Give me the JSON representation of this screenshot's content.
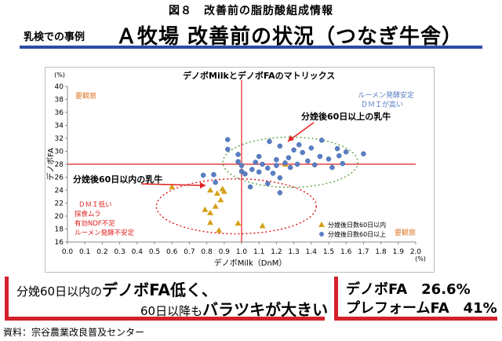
{
  "header": {
    "figure_title": "図８　改善前の脂肪酸組成情報",
    "case_label": "乳検での事例",
    "main_title": "Ａ牧場 改善前の状況（つなぎ牛舎）"
  },
  "chart_data": {
    "type": "scatter",
    "title": "デノボMilkとデノボFAのマトリックス",
    "xlabel": "デノボMilk（DnM）",
    "ylabel": "デノボFA",
    "x_unit": "(%)",
    "y_unit": "(%)",
    "xlim": [
      0.0,
      2.0
    ],
    "ylim": [
      16,
      40
    ],
    "x_ticks": [
      "0.0",
      "0.1",
      "0.2",
      "0.3",
      "0.4",
      "0.5",
      "0.6",
      "0.7",
      "0.8",
      "0.9",
      "1.0",
      "1.1",
      "1.2",
      "1.3",
      "1.4",
      "1.5",
      "1.6",
      "1.7",
      "1.8",
      "1.9",
      "2.0"
    ],
    "y_ticks": [
      "16",
      "18",
      "20",
      "22",
      "24",
      "26",
      "28",
      "30",
      "32",
      "34",
      "36",
      "38",
      "40"
    ],
    "ref_x": 1.0,
    "ref_y": 28,
    "legend_position": "bottom-right",
    "series": [
      {
        "name": "分娩後日数60日以内",
        "marker": "triangle",
        "color": "#d4a017",
        "points": [
          [
            0.6,
            24.5
          ],
          [
            0.82,
            24.0
          ],
          [
            0.86,
            23.5
          ],
          [
            0.89,
            24.2
          ],
          [
            0.9,
            23.8
          ],
          [
            0.88,
            22.5
          ],
          [
            0.85,
            21.5
          ],
          [
            0.79,
            21.0
          ],
          [
            0.82,
            20.5
          ],
          [
            0.82,
            19.0
          ],
          [
            0.98,
            18.9
          ],
          [
            0.87,
            17.8
          ],
          [
            1.12,
            18.5
          ],
          [
            1.25,
            28.0
          ]
        ]
      },
      {
        "name": "分娩後日数60日以上",
        "marker": "circle",
        "color": "#5a7fc4",
        "points": [
          [
            0.92,
            31.8
          ],
          [
            0.92,
            30.3
          ],
          [
            0.98,
            29.5
          ],
          [
            0.98,
            28.4
          ],
          [
            1.0,
            27.8
          ],
          [
            1.0,
            26.9
          ],
          [
            1.02,
            26.5
          ],
          [
            1.06,
            27.2
          ],
          [
            1.08,
            28.3
          ],
          [
            1.1,
            29.2
          ],
          [
            1.1,
            26.8
          ],
          [
            1.12,
            28.0
          ],
          [
            1.15,
            27.4
          ],
          [
            1.16,
            31.5
          ],
          [
            1.18,
            26.6
          ],
          [
            1.2,
            27.8
          ],
          [
            1.2,
            28.7
          ],
          [
            1.22,
            30.8
          ],
          [
            1.22,
            25.9
          ],
          [
            1.25,
            28.2
          ],
          [
            1.27,
            29.0
          ],
          [
            1.28,
            27.5
          ],
          [
            1.3,
            30.2
          ],
          [
            1.32,
            28.0
          ],
          [
            1.33,
            31.0
          ],
          [
            1.35,
            29.8
          ],
          [
            1.38,
            28.5
          ],
          [
            1.4,
            30.5
          ],
          [
            1.42,
            27.9
          ],
          [
            1.45,
            29.2
          ],
          [
            1.46,
            31.7
          ],
          [
            1.5,
            28.8
          ],
          [
            1.52,
            27.5
          ],
          [
            1.55,
            30.4
          ],
          [
            1.56,
            29.3
          ],
          [
            1.58,
            28.1
          ],
          [
            1.6,
            29.9
          ],
          [
            1.7,
            29.6
          ],
          [
            1.05,
            24.5
          ],
          [
            1.15,
            25.0
          ],
          [
            1.22,
            23.6
          ],
          [
            0.78,
            26.3
          ],
          [
            0.84,
            26.4
          ],
          [
            0.85,
            25.2
          ]
        ]
      }
    ],
    "annotations": {
      "top_left_quadrant": "要観察",
      "top_right_quadrant_1": "ルーメン発酵安定",
      "top_right_quadrant_2": "ＤＭＩが高い",
      "bottom_right_quadrant": "要観察",
      "over60_label": "分娩後60日以上の乳牛",
      "within60_label": "分娩後60日以内の乳牛",
      "low_dmi_lines": [
        "ＤＭＩ低い",
        "採食ムラ",
        "有効NDF不足",
        "ルーメン発酵不安定"
      ]
    }
  },
  "summary_left": {
    "line1_prefix": "分娩60日以内の",
    "line1_emph": "デノボFA低く、",
    "line2_prefix": "60日以降も",
    "line2_emph": "バラツキが大きい"
  },
  "summary_right": {
    "line1": "デノボFA　26.6%",
    "line2": "プレフォームFA　41%"
  },
  "source": "資料：宗谷農業改良普及センター"
}
